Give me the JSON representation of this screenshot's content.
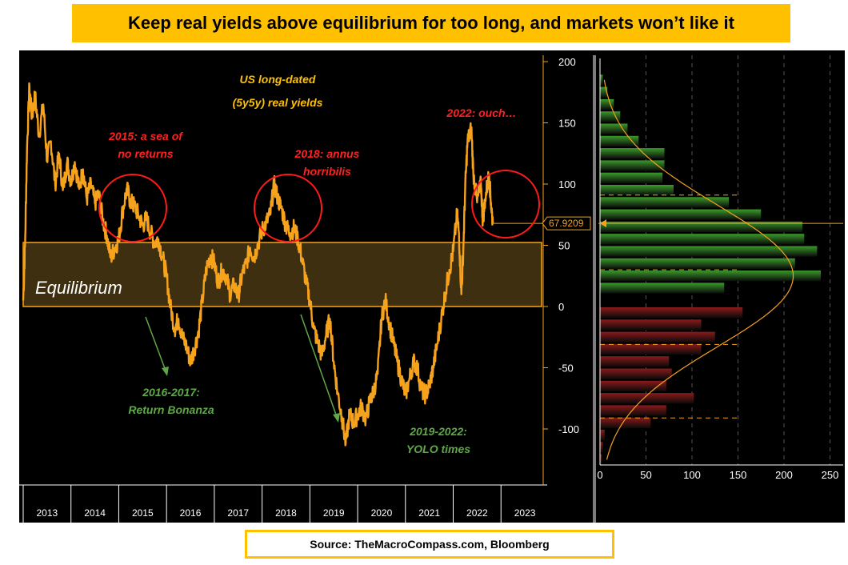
{
  "title": "Keep real yields above equilibrium for too long, and markets won’t like it",
  "source": "Source: TheMacroCompass.com, Bloomberg",
  "colors": {
    "background": "#000000",
    "line": "#f7a21b",
    "band_fill": "#3d2f10",
    "band_border": "#f7a21b",
    "title_bg": "#ffc000",
    "red_text": "#ff2020",
    "green_text": "#5fa847",
    "hist_positive": "#3b9a2b",
    "hist_negative": "#8b1a1a"
  },
  "annotations": {
    "chart_title_line1": "US long-dated",
    "chart_title_line2": "(5y5y) real yields",
    "a2015_line1": "2015: a sea of",
    "a2015_line2": "no returns",
    "a2018_line1": "2018: annus",
    "a2018_line2": "horribilis",
    "a2022": "2022: ouch…",
    "a2016_line1": "2016-2017:",
    "a2016_line2": "Return Bonanza",
    "a2019_line1": "2019-2022:",
    "a2019_line2": "YOLO times",
    "equilibrium": "Equilibrium",
    "last_value": "67.9209"
  },
  "chart_data": [
    {
      "type": "line",
      "title": "US long-dated (5y5y) real yields",
      "x_ticks": [
        "2013",
        "2014",
        "2015",
        "2016",
        "2017",
        "2018",
        "2019",
        "2020",
        "2021",
        "2022",
        "2023"
      ],
      "y_ticks": [
        -100,
        -50,
        0,
        50,
        100,
        150,
        200
      ],
      "ylim": [
        -135,
        205
      ],
      "xlim": [
        2013.0,
        2023.85
      ],
      "equilibrium_band": [
        0,
        53
      ],
      "last_value": 67.9209,
      "series": [
        {
          "points": [
            [
              2013.0,
              5
            ],
            [
              2013.04,
              52
            ],
            [
              2013.08,
              130
            ],
            [
              2013.13,
              180
            ],
            [
              2013.18,
              155
            ],
            [
              2013.25,
              172
            ],
            [
              2013.33,
              140
            ],
            [
              2013.42,
              165
            ],
            [
              2013.5,
              120
            ],
            [
              2013.58,
              135
            ],
            [
              2013.67,
              100
            ],
            [
              2013.75,
              125
            ],
            [
              2013.83,
              95
            ],
            [
              2013.92,
              118
            ],
            [
              2014.0,
              102
            ],
            [
              2014.08,
              118
            ],
            [
              2014.17,
              96
            ],
            [
              2014.25,
              112
            ],
            [
              2014.33,
              88
            ],
            [
              2014.42,
              100
            ],
            [
              2014.5,
              84
            ],
            [
              2014.58,
              92
            ],
            [
              2014.67,
              70
            ],
            [
              2014.75,
              58
            ],
            [
              2014.83,
              40
            ],
            [
              2014.92,
              48
            ],
            [
              2015.0,
              55
            ],
            [
              2015.08,
              78
            ],
            [
              2015.17,
              96
            ],
            [
              2015.25,
              85
            ],
            [
              2015.33,
              82
            ],
            [
              2015.42,
              74
            ],
            [
              2015.5,
              66
            ],
            [
              2015.58,
              72
            ],
            [
              2015.67,
              60
            ],
            [
              2015.75,
              52
            ],
            [
              2015.83,
              55
            ],
            [
              2015.92,
              40
            ],
            [
              2016.0,
              25
            ],
            [
              2016.08,
              0
            ],
            [
              2016.17,
              -18
            ],
            [
              2016.25,
              -10
            ],
            [
              2016.33,
              -25
            ],
            [
              2016.42,
              -33
            ],
            [
              2016.5,
              -45
            ],
            [
              2016.58,
              -35
            ],
            [
              2016.67,
              -20
            ],
            [
              2016.75,
              5
            ],
            [
              2016.83,
              30
            ],
            [
              2016.92,
              42
            ],
            [
              2017.0,
              35
            ],
            [
              2017.08,
              20
            ],
            [
              2017.17,
              30
            ],
            [
              2017.25,
              25
            ],
            [
              2017.33,
              10
            ],
            [
              2017.42,
              18
            ],
            [
              2017.5,
              8
            ],
            [
              2017.58,
              26
            ],
            [
              2017.67,
              35
            ],
            [
              2017.75,
              48
            ],
            [
              2017.83,
              40
            ],
            [
              2017.92,
              52
            ],
            [
              2018.0,
              62
            ],
            [
              2018.08,
              68
            ],
            [
              2018.17,
              75
            ],
            [
              2018.25,
              100
            ],
            [
              2018.33,
              88
            ],
            [
              2018.42,
              78
            ],
            [
              2018.5,
              66
            ],
            [
              2018.58,
              60
            ],
            [
              2018.67,
              64
            ],
            [
              2018.75,
              55
            ],
            [
              2018.83,
              40
            ],
            [
              2018.92,
              20
            ],
            [
              2019.0,
              5
            ],
            [
              2019.08,
              -18
            ],
            [
              2019.17,
              -30
            ],
            [
              2019.25,
              -40
            ],
            [
              2019.33,
              -25
            ],
            [
              2019.42,
              -10
            ],
            [
              2019.5,
              -45
            ],
            [
              2019.58,
              -70
            ],
            [
              2019.67,
              -90
            ],
            [
              2019.75,
              -112
            ],
            [
              2019.83,
              -88
            ],
            [
              2019.92,
              -95
            ],
            [
              2020.0,
              -88
            ],
            [
              2020.08,
              -82
            ],
            [
              2020.17,
              -92
            ],
            [
              2020.25,
              -78
            ],
            [
              2020.33,
              -70
            ],
            [
              2020.42,
              -55
            ],
            [
              2020.5,
              -10
            ],
            [
              2020.58,
              5
            ],
            [
              2020.67,
              -15
            ],
            [
              2020.75,
              -30
            ],
            [
              2020.83,
              -45
            ],
            [
              2020.92,
              -60
            ],
            [
              2021.0,
              -72
            ],
            [
              2021.08,
              -60
            ],
            [
              2021.17,
              -45
            ],
            [
              2021.25,
              -50
            ],
            [
              2021.33,
              -68
            ],
            [
              2021.42,
              -72
            ],
            [
              2021.5,
              -65
            ],
            [
              2021.58,
              -50
            ],
            [
              2021.67,
              -30
            ],
            [
              2021.75,
              -10
            ],
            [
              2021.83,
              10
            ],
            [
              2021.92,
              30
            ],
            [
              2022.0,
              45
            ],
            [
              2022.08,
              75
            ],
            [
              2022.12,
              60
            ],
            [
              2022.17,
              10
            ],
            [
              2022.21,
              45
            ],
            [
              2022.25,
              95
            ],
            [
              2022.3,
              135
            ],
            [
              2022.38,
              145
            ],
            [
              2022.42,
              110
            ],
            [
              2022.5,
              85
            ],
            [
              2022.58,
              100
            ],
            [
              2022.62,
              70
            ],
            [
              2022.67,
              88
            ],
            [
              2022.75,
              108
            ],
            [
              2022.79,
              85
            ],
            [
              2022.83,
              68
            ]
          ]
        }
      ]
    },
    {
      "type": "bar",
      "orientation": "horizontal",
      "xlim": [
        0,
        250
      ],
      "x_ticks": [
        0,
        50,
        100,
        150,
        200,
        250
      ],
      "bin_width": 10,
      "bins_positive": [
        {
          "y_low": 180,
          "y_high": 190,
          "value": 3
        },
        {
          "y_low": 170,
          "y_high": 180,
          "value": 8
        },
        {
          "y_low": 160,
          "y_high": 170,
          "value": 15
        },
        {
          "y_low": 150,
          "y_high": 160,
          "value": 22
        },
        {
          "y_low": 140,
          "y_high": 150,
          "value": 30
        },
        {
          "y_low": 130,
          "y_high": 140,
          "value": 42
        },
        {
          "y_low": 120,
          "y_high": 130,
          "value": 70
        },
        {
          "y_low": 110,
          "y_high": 120,
          "value": 70
        },
        {
          "y_low": 100,
          "y_high": 110,
          "value": 68
        },
        {
          "y_low": 90,
          "y_high": 100,
          "value": 80
        },
        {
          "y_low": 80,
          "y_high": 90,
          "value": 140
        },
        {
          "y_low": 70,
          "y_high": 80,
          "value": 175
        },
        {
          "y_low": 60,
          "y_high": 70,
          "value": 220
        },
        {
          "y_low": 50,
          "y_high": 60,
          "value": 222
        },
        {
          "y_low": 40,
          "y_high": 50,
          "value": 236
        },
        {
          "y_low": 30,
          "y_high": 40,
          "value": 212
        },
        {
          "y_low": 20,
          "y_high": 30,
          "value": 240
        },
        {
          "y_low": 10,
          "y_high": 20,
          "value": 135
        }
      ],
      "bins_negative": [
        {
          "y_low": -10,
          "y_high": 0,
          "value": 155
        },
        {
          "y_low": -20,
          "y_high": -10,
          "value": 110
        },
        {
          "y_low": -30,
          "y_high": -20,
          "value": 125
        },
        {
          "y_low": -40,
          "y_high": -30,
          "value": 110
        },
        {
          "y_low": -50,
          "y_high": -40,
          "value": 75
        },
        {
          "y_low": -60,
          "y_high": -50,
          "value": 78
        },
        {
          "y_low": -70,
          "y_high": -60,
          "value": 72
        },
        {
          "y_low": -80,
          "y_high": -70,
          "value": 102
        },
        {
          "y_low": -90,
          "y_high": -80,
          "value": 72
        },
        {
          "y_low": -100,
          "y_high": -90,
          "value": 55
        },
        {
          "y_low": -110,
          "y_high": -100,
          "value": 5
        },
        {
          "y_low": -120,
          "y_high": -110,
          "value": 3
        },
        {
          "y_low": -130,
          "y_high": -120,
          "value": 2
        }
      ],
      "normal_curve": {
        "mean": 25,
        "std": 58,
        "peak": 210
      },
      "dashed_levels": [
        91,
        30,
        -31,
        -91
      ]
    }
  ]
}
